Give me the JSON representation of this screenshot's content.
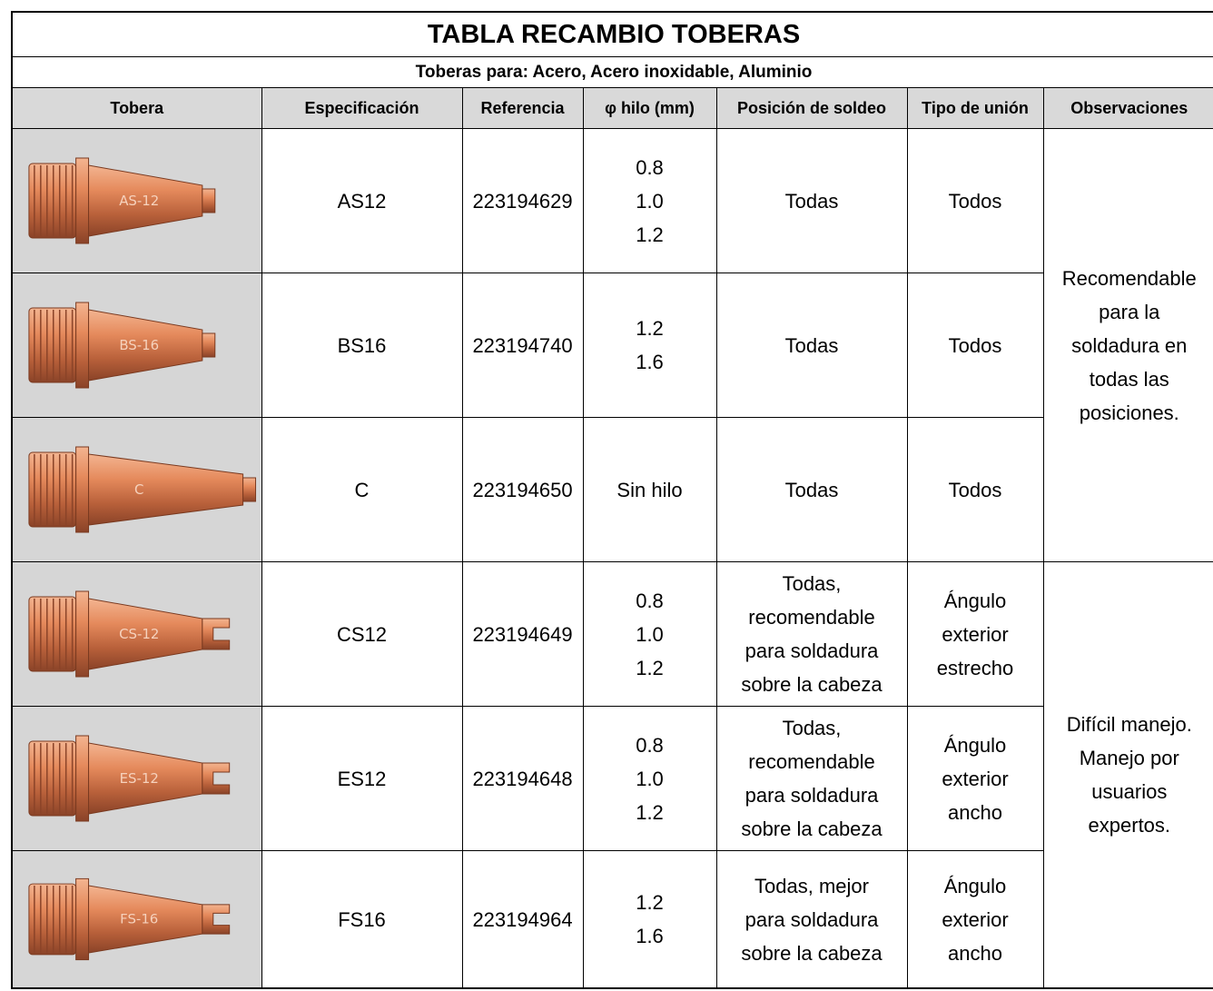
{
  "table": {
    "title": "TABLA RECAMBIO TOBERAS",
    "subtitle": "Toberas para: Acero, Acero inoxidable, Aluminio",
    "headers": [
      "Tobera",
      "Especificación",
      "Referencia",
      "φ hilo (mm)",
      "Posición de soldeo",
      "Tipo de unión",
      "Observaciones"
    ],
    "groups": [
      {
        "observaciones": "Recomendable\npara la\nsoldadura en\ntodas las\nposiciones.",
        "rows": [
          {
            "image_label": "AS-12",
            "especificacion": "AS12",
            "referencia": "223194629",
            "hilo": "0.8\n1.0\n1.2",
            "posicion": "Todas",
            "union": "Todos"
          },
          {
            "image_label": "BS-16",
            "especificacion": "BS16",
            "referencia": "223194740",
            "hilo": "1.2\n1.6",
            "posicion": "Todas",
            "union": "Todos"
          },
          {
            "image_label": "C",
            "especificacion": "C",
            "referencia": "223194650",
            "hilo": "Sin hilo",
            "posicion": "Todas",
            "union": "Todos"
          }
        ]
      },
      {
        "observaciones": "Difícil manejo.\nManejo por\nusuarios\nexpertos.",
        "rows": [
          {
            "image_label": "CS-12",
            "especificacion": "CS12",
            "referencia": "223194649",
            "hilo": "0.8\n1.0\n1.2",
            "posicion": "Todas,\nrecomendable\npara soldadura\nsobre la cabeza",
            "union": "Ángulo\nexterior\nestrecho"
          },
          {
            "image_label": "ES-12",
            "especificacion": "ES12",
            "referencia": "223194648",
            "hilo": "0.8\n1.0\n1.2",
            "posicion": "Todas,\nrecomendable\npara soldadura\nsobre la cabeza",
            "union": "Ángulo\nexterior\nancho"
          },
          {
            "image_label": "FS-16",
            "especificacion": "FS16",
            "referencia": "223194964",
            "hilo": "1.2\n1.6",
            "posicion": "Todas, mejor\npara soldadura\nsobre la cabeza",
            "union": "Ángulo\nexterior\nancho"
          }
        ]
      }
    ]
  }
}
